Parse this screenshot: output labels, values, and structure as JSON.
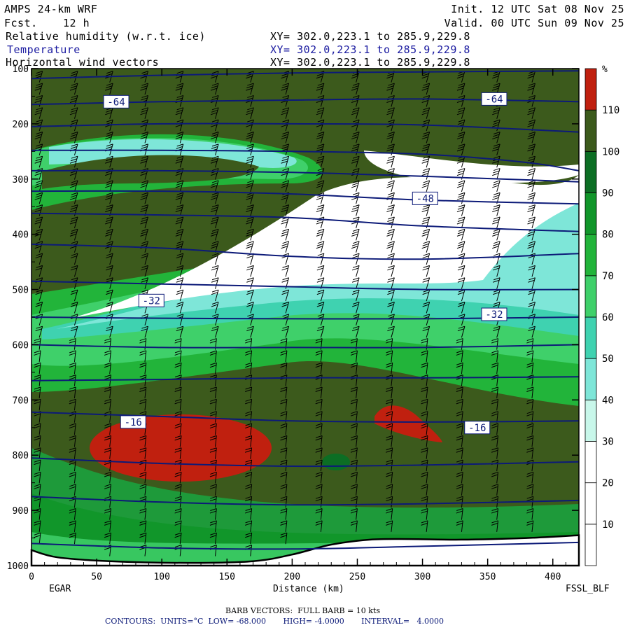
{
  "header": {
    "model": "AMPS 24-km WRF",
    "init": "Init. 12 UTC Sat 08 Nov 25",
    "fcst_label": "Fcst.",
    "fcst_value": "12 h",
    "valid": "Valid. 00 UTC Sun 09 Nov 25",
    "field1": "Relative humidity (w.r.t. ice)",
    "field2": "Temperature",
    "field3": "Horizontal wind vectors",
    "xy": "XY= 302.0,223.1 to 285.9,229.8"
  },
  "colorbar": {
    "unit": "%",
    "levels": [
      "10",
      "20",
      "30",
      "40",
      "50",
      "60",
      "70",
      "80",
      "90",
      "100",
      "110"
    ],
    "colors": [
      "#ffffff",
      "#ffffff",
      "#ffffff",
      "#c8f7ea",
      "#7ee6d8",
      "#3fd2b0",
      "#3fd06a",
      "#22b43a",
      "#11962a",
      "#0c6e24",
      "#3c5a1c",
      "#c0200f"
    ]
  },
  "footer": {
    "left_station": "EGAR",
    "right_station": "FSSL_BLF",
    "barb_note": "BARB VECTORS:  FULL BARB = 10 kts",
    "contours": "CONTOURS:  UNITS=°C  LOW= -68.000       HIGH= -4.0000       INTERVAL=   4.0000"
  },
  "chart_data": {
    "type": "heatmap",
    "xlabel": "Distance (km)",
    "ylabel": "",
    "x_ticks": [
      0,
      50,
      100,
      150,
      200,
      250,
      300,
      350,
      400
    ],
    "y_ticks": [
      100,
      200,
      300,
      400,
      500,
      600,
      700,
      800,
      900,
      1000
    ],
    "xlim": [
      0,
      420
    ],
    "ylim": [
      100,
      1000
    ],
    "y_reversed": true,
    "temperature_contour_labels": [
      {
        "text": "-64",
        "x": 65,
        "p": 160
      },
      {
        "text": "-64",
        "x": 355,
        "p": 155
      },
      {
        "text": "-48",
        "x": 302,
        "p": 335
      },
      {
        "text": "-32",
        "x": 92,
        "p": 520
      },
      {
        "text": "-32",
        "x": 355,
        "p": 545
      },
      {
        "text": "-16",
        "x": 78,
        "p": 740
      },
      {
        "text": "-16",
        "x": 342,
        "p": 750
      }
    ],
    "temperature_isotherms": [
      {
        "x": [
          0,
          100,
          200,
          300,
          420
        ],
        "p": [
          118,
          112,
          108,
          106,
          104
        ]
      },
      {
        "x": [
          0,
          100,
          200,
          300,
          420
        ],
        "p": [
          165,
          160,
          157,
          155,
          160
        ]
      },
      {
        "x": [
          0,
          100,
          200,
          300,
          420
        ],
        "p": [
          205,
          200,
          200,
          202,
          215
        ]
      },
      {
        "x": [
          0,
          100,
          200,
          300,
          380,
          420
        ],
        "p": [
          248,
          248,
          250,
          255,
          270,
          285
        ]
      },
      {
        "x": [
          0,
          100,
          200,
          300,
          420
        ],
        "p": [
          285,
          285,
          288,
          295,
          305
        ]
      },
      {
        "x": [
          0,
          100,
          200,
          300,
          420
        ],
        "p": [
          322,
          322,
          327,
          338,
          345
        ]
      },
      {
        "x": [
          0,
          100,
          200,
          300,
          420
        ],
        "p": [
          362,
          365,
          370,
          385,
          395
        ]
      },
      {
        "x": [
          0,
          100,
          200,
          300,
          420
        ],
        "p": [
          418,
          425,
          440,
          445,
          435
        ]
      },
      {
        "x": [
          0,
          100,
          200,
          300,
          420
        ],
        "p": [
          485,
          490,
          495,
          500,
          500
        ]
      },
      {
        "x": [
          0,
          100,
          200,
          300,
          420
        ],
        "p": [
          550,
          552,
          553,
          553,
          550
        ]
      },
      {
        "x": [
          0,
          100,
          200,
          300,
          420
        ],
        "p": [
          600,
          605,
          605,
          605,
          600
        ]
      },
      {
        "x": [
          0,
          100,
          200,
          300,
          420
        ],
        "p": [
          665,
          663,
          660,
          660,
          658
        ]
      },
      {
        "x": [
          0,
          100,
          200,
          300,
          420
        ],
        "p": [
          722,
          730,
          738,
          740,
          738
        ]
      },
      {
        "x": [
          0,
          100,
          200,
          300,
          420
        ],
        "p": [
          805,
          815,
          820,
          818,
          812
        ]
      },
      {
        "x": [
          0,
          100,
          200,
          300,
          420
        ],
        "p": [
          875,
          885,
          890,
          888,
          882
        ]
      },
      {
        "x": [
          0,
          100,
          200,
          300,
          420
        ],
        "p": [
          960,
          968,
          970,
          965,
          958
        ]
      }
    ],
    "terrain_surface_pressure": {
      "x": [
        0,
        20,
        60,
        120,
        170,
        200,
        230,
        260,
        290,
        330,
        380,
        420
      ],
      "p": [
        972,
        985,
        992,
        995,
        992,
        980,
        962,
        953,
        952,
        953,
        950,
        945
      ]
    }
  }
}
